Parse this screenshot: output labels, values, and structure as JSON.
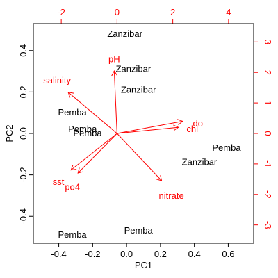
{
  "chart_data": {
    "type": "scatter",
    "subtype": "biplot",
    "title": "",
    "xlabel": "PC1",
    "ylabel": "PC2",
    "xlim": [
      -0.55,
      0.75
    ],
    "ylim": [
      -0.53,
      0.53
    ],
    "x_ticks": [
      -0.4,
      -0.2,
      0.0,
      0.2,
      0.4,
      0.6
    ],
    "x_tick_labels": [
      "-0.4",
      "-0.2",
      "0.0",
      "0.2",
      "0.4",
      "0.6"
    ],
    "y_ticks": [
      -0.4,
      -0.2,
      0.0,
      0.2,
      0.4
    ],
    "y_tick_labels": [
      "-0.4",
      "-0.2",
      "0.0",
      "0.2",
      "0.4"
    ],
    "loading_axes": {
      "color": "#ff0000",
      "top": {
        "lim": [
          -3.0,
          4.9
        ],
        "ticks": [
          -2,
          0,
          2,
          4
        ],
        "tick_labels": [
          "-2",
          "0",
          "2",
          "4"
        ]
      },
      "right": {
        "lim": [
          -3.6,
          3.6
        ],
        "ticks": [
          -3,
          -2,
          -1,
          0,
          1,
          2,
          3
        ],
        "tick_labels": [
          "-3",
          "-2",
          "-1",
          "0",
          "1",
          "2",
          "3"
        ]
      }
    },
    "points": [
      {
        "label": "Zanzibar",
        "x": -0.01,
        "y": 0.48
      },
      {
        "label": "Zanzibar",
        "x": 0.04,
        "y": 0.31
      },
      {
        "label": "Zanzibar",
        "x": 0.07,
        "y": 0.21
      },
      {
        "label": "Pemba",
        "x": -0.32,
        "y": 0.1
      },
      {
        "label": "Pemba",
        "x": -0.26,
        "y": 0.02
      },
      {
        "label": "Pemba",
        "x": -0.23,
        "y": 0.0
      },
      {
        "label": "Pemba",
        "x": 0.59,
        "y": -0.07
      },
      {
        "label": "Zanzibar",
        "x": 0.43,
        "y": -0.14
      },
      {
        "label": "Pemba",
        "x": -0.32,
        "y": -0.49
      },
      {
        "label": "Pemba",
        "x": 0.07,
        "y": -0.47
      }
    ],
    "loadings": [
      {
        "name": "pH",
        "x": -0.1,
        "y": 2.05
      },
      {
        "name": "salinity",
        "x": -1.75,
        "y": 1.35
      },
      {
        "name": "do",
        "x": 2.35,
        "y": 0.4
      },
      {
        "name": "chl",
        "x": 2.2,
        "y": 0.2
      },
      {
        "name": "nitrate",
        "x": 1.6,
        "y": -1.55
      },
      {
        "name": "sst",
        "x": -1.65,
        "y": -1.2
      },
      {
        "name": "po4",
        "x": -1.4,
        "y": -1.3
      }
    ],
    "loading_label_offsets": {
      "pH": [
        0.0,
        0.38
      ],
      "salinity": [
        -0.4,
        0.38
      ],
      "do": [
        0.55,
        -0.08
      ],
      "chl": [
        0.5,
        -0.06
      ],
      "nitrate": [
        0.35,
        -0.5
      ],
      "sst": [
        -0.45,
        -0.4
      ],
      "po4": [
        -0.2,
        -0.47
      ]
    },
    "grid": false,
    "legend": "none"
  }
}
